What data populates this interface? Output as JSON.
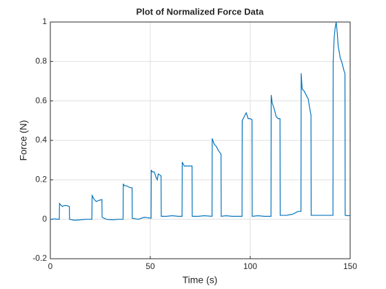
{
  "chart_data": {
    "type": "line",
    "title": "Plot of Normalized Force Data",
    "x_label": "Time (s)",
    "y_label": "Force (N)",
    "xlim": [
      0,
      150
    ],
    "ylim": [
      -0.2,
      1
    ],
    "xticks": [
      0,
      50,
      100,
      150
    ],
    "yticks": [
      -0.2,
      0,
      0.2,
      0.4,
      0.6,
      0.8,
      1
    ],
    "grid": true,
    "series": [
      {
        "color": "#0072bd",
        "x": [
          0,
          2,
          4.5,
          4.6,
          5,
          6,
          7,
          8,
          9.5,
          9.6,
          12,
          15,
          18,
          20.8,
          20.9,
          21.5,
          22,
          23,
          24,
          25.8,
          25.9,
          28,
          31,
          34,
          36.4,
          36.5,
          37,
          38,
          39,
          40,
          40.9,
          41,
          44,
          47,
          50.4,
          50.5,
          51,
          52,
          53,
          53.5,
          54,
          55.4,
          55.5,
          58,
          61,
          64,
          65.9,
          66,
          67,
          68,
          70.9,
          71,
          74,
          77,
          80.9,
          81,
          82,
          83,
          84,
          85.4,
          85.5,
          88,
          91,
          94,
          95.9,
          96,
          97,
          98,
          99,
          100,
          100.9,
          101,
          104,
          107,
          110.4,
          110.5,
          111,
          112,
          113,
          114,
          114.9,
          115,
          118,
          121,
          124,
          125.4,
          125.5,
          126,
          127,
          128,
          129,
          130,
          130.4,
          130.5,
          133,
          136,
          139,
          141.4,
          141.5,
          142,
          142.5,
          143,
          143.5,
          144,
          145,
          146,
          147,
          147.4,
          147.5,
          149,
          150
        ],
        "values": [
          0,
          0.002,
          0,
          0.08,
          0.075,
          0.065,
          0.07,
          0.07,
          0.065,
          0,
          -0.005,
          -0.003,
          0,
          0,
          0.12,
          0.11,
          0.1,
          0.09,
          0.095,
          0.1,
          0.01,
          0,
          -0.003,
          0,
          0,
          0.18,
          0.17,
          0.17,
          0.165,
          0.16,
          0.16,
          0.005,
          0,
          0.01,
          0.005,
          0.25,
          0.24,
          0.24,
          0.21,
          0.2,
          0.23,
          0.22,
          0.015,
          0.015,
          0.018,
          0.015,
          0.015,
          0.29,
          0.27,
          0.27,
          0.27,
          0.015,
          0.015,
          0.018,
          0.015,
          0.41,
          0.38,
          0.37,
          0.35,
          0.33,
          0.015,
          0.018,
          0.015,
          0.015,
          0.015,
          0.5,
          0.52,
          0.54,
          0.51,
          0.51,
          0.505,
          0.015,
          0.018,
          0.015,
          0.015,
          0.63,
          0.59,
          0.56,
          0.52,
          0.51,
          0.51,
          0.02,
          0.02,
          0.025,
          0.04,
          0.04,
          0.74,
          0.66,
          0.65,
          0.63,
          0.61,
          0.55,
          0.53,
          0.02,
          0.02,
          0.02,
          0.02,
          0.02,
          0.8,
          0.92,
          0.97,
          1.0,
          0.95,
          0.88,
          0.82,
          0.79,
          0.75,
          0.74,
          0.02,
          0.018,
          0.02
        ]
      }
    ]
  }
}
